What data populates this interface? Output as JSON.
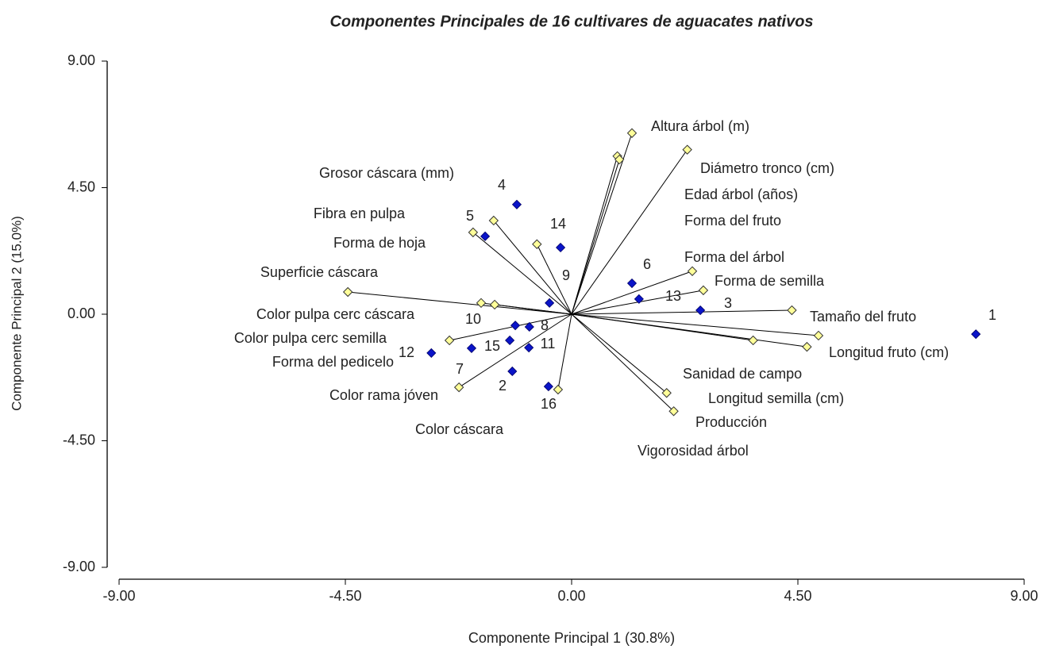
{
  "chart_data": {
    "type": "biplot",
    "title": "Componentes Principales de 16 cultivares de aguacates nativos",
    "xlabel": "Componente Principal 1 (30.8%)",
    "ylabel": "Componente Principal 2 (15.0%)",
    "xlim": [
      -9,
      9
    ],
    "ylim": [
      -9,
      9
    ],
    "xticks": [
      {
        "value": -9,
        "label": "-9.00"
      },
      {
        "value": -4.5,
        "label": "-4.50"
      },
      {
        "value": 0,
        "label": "0.00"
      },
      {
        "value": 4.5,
        "label": "4.50"
      },
      {
        "value": 9,
        "label": "9.00"
      }
    ],
    "yticks": [
      {
        "value": -9,
        "label": "-9.00"
      },
      {
        "value": -4.5,
        "label": "-4.50"
      },
      {
        "value": 0,
        "label": "0.00"
      },
      {
        "value": 4.5,
        "label": "4.50"
      },
      {
        "value": 9,
        "label": "9.00"
      }
    ],
    "cultivars": {
      "color": "#0a14c8",
      "labels": [
        "1",
        "2",
        "3",
        "4",
        "5",
        "6",
        "7",
        "8",
        "9",
        "10",
        "11",
        "12",
        "13",
        "14",
        "15",
        "16"
      ],
      "x": [
        8.04,
        -1.18,
        2.56,
        -1.09,
        -1.72,
        1.2,
        -1.23,
        -0.84,
        -0.44,
        -1.12,
        -0.85,
        -2.79,
        1.34,
        -0.22,
        -1.99,
        -0.46
      ],
      "y": [
        -0.71,
        -2.03,
        0.14,
        3.9,
        2.77,
        1.1,
        -0.93,
        -0.45,
        0.4,
        -0.4,
        -1.19,
        -1.38,
        0.54,
        2.37,
        -1.21,
        -2.57
      ]
    },
    "variables": {
      "color": "#ffff99",
      "labels": [
        "Altura árbol (m)",
        "Diámetro tronco (cm)",
        "Edad árbol (años)",
        "Forma del fruto",
        "Forma del árbol",
        "Forma de semilla",
        "Tamaño del fruto",
        "Longitud fruto (cm)",
        "Sanidad de campo",
        "Longitud semilla (cm)",
        "Producción",
        "Vigorosidad árbol",
        "Grosor cáscara (mm)",
        "Fibra en pulpa",
        "Forma de hoja",
        "Superficie cáscara",
        "Color pulpa cerc cáscara",
        "Color pulpa cerc semilla",
        "Forma del pedicelo",
        "Color rama jóven",
        "Color cáscara"
      ],
      "x": [
        1.2,
        2.3,
        0.91,
        0.95,
        2.4,
        2.62,
        4.38,
        4.68,
        1.89,
        4.91,
        2.03,
        3.61,
        -0.69,
        -1.55,
        -1.96,
        -4.45,
        -1.8,
        -1.53,
        -2.43,
        -2.24,
        -0.27
      ],
      "y": [
        6.44,
        5.85,
        5.62,
        5.5,
        1.53,
        0.85,
        0.14,
        -1.16,
        -2.8,
        -0.76,
        -3.45,
        -0.93,
        2.49,
        3.33,
        2.91,
        0.79,
        0.4,
        0.34,
        -0.93,
        -2.6,
        -2.68
      ]
    }
  }
}
